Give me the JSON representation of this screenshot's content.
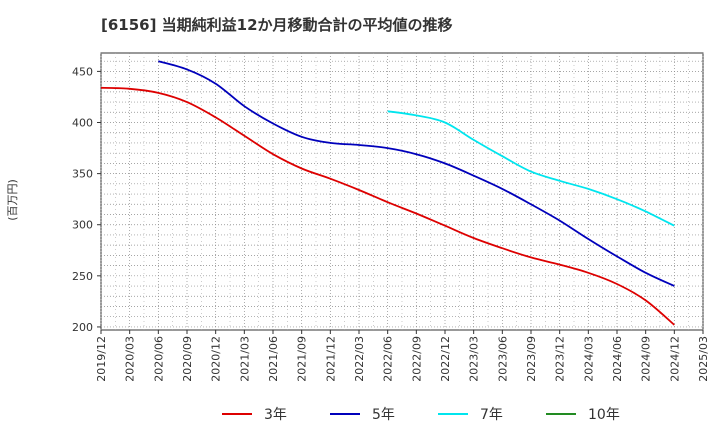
{
  "chart_data": {
    "type": "line",
    "title": "[6156]  当期純利益12か月移動合計の平均値の推移",
    "ylabel": "(百万円)",
    "xlabel": "",
    "ylim": [
      197,
      468
    ],
    "yticks": [
      200,
      250,
      300,
      350,
      400,
      450
    ],
    "x_ticks": [
      "2019/12",
      "2020/03",
      "2020/06",
      "2020/09",
      "2020/12",
      "2021/03",
      "2021/06",
      "2021/09",
      "2021/12",
      "2022/03",
      "2022/06",
      "2022/09",
      "2022/12",
      "2023/03",
      "2023/06",
      "2023/09",
      "2023/12",
      "2024/03",
      "2024/06",
      "2024/09",
      "2024/12",
      "2025/03"
    ],
    "grid": true,
    "legend_position": "bottom",
    "series": [
      {
        "name": "3年",
        "color": "#dd0000",
        "points": [
          [
            "2019/12",
            434
          ],
          [
            "2020/03",
            433
          ],
          [
            "2020/06",
            429
          ],
          [
            "2020/09",
            420
          ],
          [
            "2020/12",
            405
          ],
          [
            "2021/03",
            387
          ],
          [
            "2021/06",
            369
          ],
          [
            "2021/09",
            355
          ],
          [
            "2021/12",
            345
          ],
          [
            "2022/03",
            334
          ],
          [
            "2022/06",
            322
          ],
          [
            "2022/09",
            311
          ],
          [
            "2022/12",
            299
          ],
          [
            "2023/03",
            287
          ],
          [
            "2023/06",
            277
          ],
          [
            "2023/09",
            268
          ],
          [
            "2023/12",
            261
          ],
          [
            "2024/03",
            253
          ],
          [
            "2024/06",
            242
          ],
          [
            "2024/09",
            226
          ],
          [
            "2024/12",
            202
          ]
        ]
      },
      {
        "name": "5年",
        "color": "#0000bb",
        "points": [
          [
            "2020/06",
            460
          ],
          [
            "2020/09",
            452
          ],
          [
            "2020/12",
            438
          ],
          [
            "2021/03",
            416
          ],
          [
            "2021/06",
            399
          ],
          [
            "2021/09",
            386
          ],
          [
            "2021/12",
            380
          ],
          [
            "2022/03",
            378
          ],
          [
            "2022/06",
            375
          ],
          [
            "2022/09",
            369
          ],
          [
            "2022/12",
            360
          ],
          [
            "2023/03",
            348
          ],
          [
            "2023/06",
            335
          ],
          [
            "2023/09",
            320
          ],
          [
            "2023/12",
            304
          ],
          [
            "2024/03",
            286
          ],
          [
            "2024/06",
            269
          ],
          [
            "2024/09",
            253
          ],
          [
            "2024/12",
            240
          ]
        ]
      },
      {
        "name": "7年",
        "color": "#00e5ee",
        "points": [
          [
            "2022/06",
            411
          ],
          [
            "2022/09",
            407
          ],
          [
            "2022/12",
            400
          ],
          [
            "2023/03",
            383
          ],
          [
            "2023/06",
            367
          ],
          [
            "2023/09",
            352
          ],
          [
            "2023/12",
            343
          ],
          [
            "2024/03",
            335
          ],
          [
            "2024/06",
            325
          ],
          [
            "2024/09",
            313
          ],
          [
            "2024/12",
            299
          ]
        ]
      },
      {
        "name": "10年",
        "color": "#228b22",
        "points": []
      }
    ]
  }
}
